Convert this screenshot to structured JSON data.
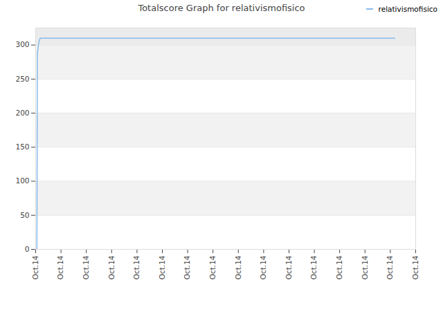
{
  "chart_data": {
    "type": "line",
    "title": "Totalscore Graph for relativismofisico",
    "x": [
      0.05,
      0.07,
      0.09,
      0.11,
      0.14,
      0.18,
      14.18
    ],
    "series": [
      {
        "name": "relativismofisico",
        "color": "#88bbee",
        "values": [
          0,
          290,
          292,
          300,
          306,
          310,
          310
        ]
      }
    ],
    "xlim": [
      0,
      15
    ],
    "xticks": [
      {
        "value": 0,
        "label": "Oct.14"
      },
      {
        "value": 1,
        "label": "Oct.14"
      },
      {
        "value": 2,
        "label": "Oct.14"
      },
      {
        "value": 3,
        "label": "Oct.14"
      },
      {
        "value": 4,
        "label": "Oct.14"
      },
      {
        "value": 5,
        "label": "Oct.14"
      },
      {
        "value": 6,
        "label": "Oct.14"
      },
      {
        "value": 7,
        "label": "Oct.14"
      },
      {
        "value": 8,
        "label": "Oct.14"
      },
      {
        "value": 9,
        "label": "Oct.14"
      },
      {
        "value": 10,
        "label": "Oct.14"
      },
      {
        "value": 11,
        "label": "Oct.14"
      },
      {
        "value": 12,
        "label": "Oct.14"
      },
      {
        "value": 13,
        "label": "Oct.14"
      },
      {
        "value": 14,
        "label": "Oct.14"
      },
      {
        "value": 15,
        "label": "Oct.14"
      }
    ],
    "ylim": [
      0,
      325
    ],
    "yticks": [
      0,
      50,
      100,
      150,
      200,
      250,
      300
    ],
    "grid": true,
    "legend": "top-right"
  }
}
